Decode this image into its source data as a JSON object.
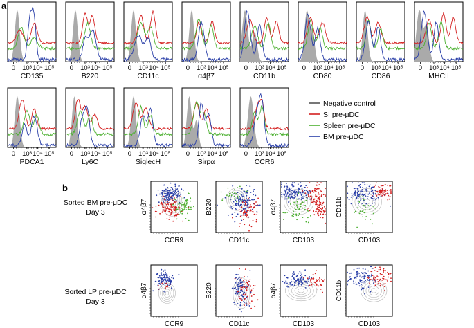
{
  "figure": {
    "panel_a_letter": "a",
    "panel_b_letter": "b",
    "legend": [
      {
        "label": "Negative control",
        "color": "#555555"
      },
      {
        "label": "SI pre-μDC",
        "color": "#d42020"
      },
      {
        "label": "Spleen pre-μDC",
        "color": "#4cb030"
      },
      {
        "label": "BM pre-μDC",
        "color": "#2a3fa8"
      }
    ],
    "tick_labels": [
      "0",
      "10³",
      "10⁴",
      "10⁵"
    ],
    "histogram_markers": [
      "CD135",
      "B220",
      "CD11c",
      "α4β7",
      "CD11b",
      "CD80",
      "CD86",
      "MHCII",
      "PDCA1",
      "Ly6C",
      "SiglecH",
      "Sirpα",
      "CCR6"
    ],
    "sorted_rows": [
      {
        "line1": "Sorted BM pre-μDC",
        "line2": "Day 3"
      },
      {
        "line1": "Sorted LP pre-μDC",
        "line2": "Day 3"
      }
    ],
    "dot_plots": [
      {
        "x": "CCR9",
        "y": "α4β7"
      },
      {
        "x": "CD11c",
        "y": "B220"
      },
      {
        "x": "CD103",
        "y": "α4β7"
      },
      {
        "x": "CD103",
        "y": "CD11b"
      }
    ],
    "colors": {
      "gray_fill": "#aaaaaa",
      "contour": "#b4b4b4",
      "frame": "#000000"
    }
  }
}
